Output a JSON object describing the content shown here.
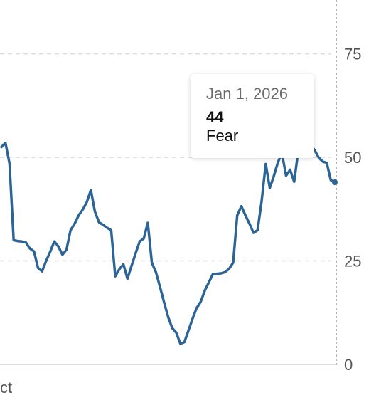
{
  "chart_data": {
    "type": "line",
    "y_ticks": [
      0,
      25,
      50,
      75
    ],
    "ylim": [
      0,
      88
    ],
    "x_tick_labels": [
      "ct"
    ],
    "series": [
      {
        "color": "#2c6496",
        "values": [
          52.5,
          53.5,
          48.5,
          30,
          29.8,
          29.7,
          29.5,
          28,
          27.3,
          23.3,
          22.5,
          25,
          27.2,
          29.7,
          28.5,
          26.5,
          27.7,
          32.4,
          34,
          36,
          37.4,
          39.2,
          42.1,
          36.9,
          34.3,
          33.7,
          33,
          32.4,
          21.3,
          23,
          24.2,
          20.7,
          23.8,
          26.8,
          29.7,
          30.4,
          34.2,
          24.6,
          22.3,
          18.7,
          15,
          11.5,
          8.8,
          7.7,
          5,
          5.4,
          8.2,
          11,
          13.6,
          15.1,
          17.8,
          19.8,
          21.8,
          21.9,
          22,
          22.3,
          23.1,
          24.6,
          36,
          38.2,
          36,
          34,
          31.8,
          32.4,
          39.4,
          48.4,
          42.6,
          45.5,
          48.8,
          51,
          45.6,
          47,
          44.1,
          51.5,
          53.4,
          55.2,
          53,
          51.8,
          50,
          49,
          48.7,
          44.5,
          44
        ]
      }
    ],
    "highlighted_point": {
      "value": 44
    },
    "grid": true,
    "right_axis": true
  },
  "tooltip": {
    "date": "Jan 1, 2026",
    "value": "44",
    "rating": "Fear"
  }
}
